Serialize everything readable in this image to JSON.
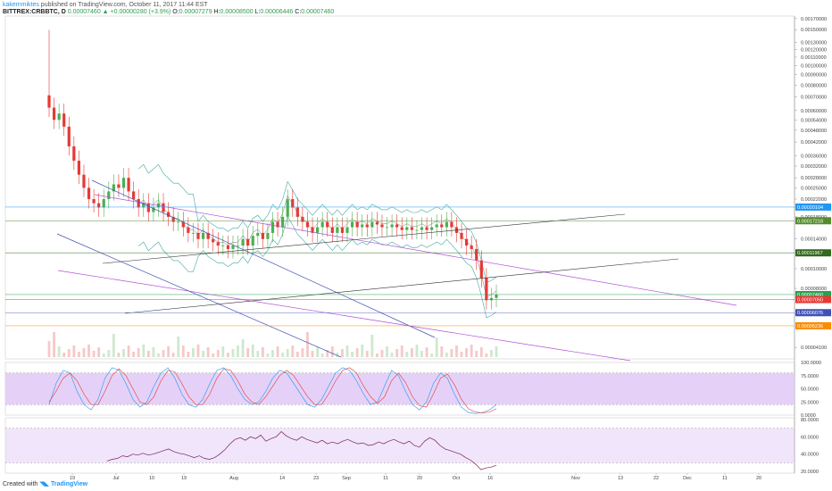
{
  "header": {
    "author": "kakemmiktes",
    "published": "published on TradingView.com, October 11, 2017 11:44 EST",
    "symbol": "BITTREX:CRBBTC, D",
    "ohlc": "0.00007460 ▲ +0.00000280 (+3.9%)",
    "o_label": "O:",
    "o": "0.00007279",
    "h_label": "H:",
    "h": "0.00008500",
    "l_label": "L:",
    "l": "0.00006446",
    "c_label": "C:",
    "c": "0.00007460"
  },
  "footer": {
    "created_with": "Created with",
    "brand": "TradingView"
  },
  "colors": {
    "up": "#4caf50",
    "down": "#e53935",
    "bb": "#3fa9a0",
    "ma": "#777777",
    "wedge_pink": "#b04fd6",
    "wedge_blue": "#3f51b5",
    "trend_black": "#333333",
    "rsi_band": "#dec6f6",
    "stoch_k": "#2196f3",
    "stoch_d": "#e53935",
    "rsi_line": "#7b1f54"
  },
  "chart_data": [
    {
      "type": "candlestick",
      "title": "BITTREX:CRBBTC, D",
      "x_ticks": [
        "19",
        "Jul",
        "10",
        "19",
        "Aug",
        "14",
        "23",
        "Sep",
        "11",
        "20",
        "Oct",
        "16",
        "Nov",
        "13",
        "22",
        "Dec",
        "11",
        "20"
      ],
      "y_ticks": [
        "0.00170000",
        "0.00150000",
        "0.00130000",
        "0.00120000",
        "0.00110000",
        "0.00100000",
        "0.00090000",
        "0.00080000",
        "0.00070000",
        "0.00060000",
        "0.00054000",
        "0.00048000",
        "0.00042000",
        "0.00036000",
        "0.00032000",
        "0.00028000",
        "0.00025000",
        "0.00022000",
        "0.00020000",
        "0.00018000",
        "0.00014000",
        "0.00010000",
        "0.00008000",
        "0.00006000",
        "0.00004100"
      ],
      "y_scale": "log",
      "ylim": [
        3.6e-05,
        0.00175
      ],
      "price_labels": [
        {
          "text": "0.00020104",
          "color": "#2196f3"
        },
        {
          "text": "0.00017218",
          "color": "#558b2f"
        },
        {
          "text": "0.00011967",
          "color": "#33691e"
        },
        {
          "text": "0.00007460",
          "color": "#2e9e4f"
        },
        {
          "text": "0.00007050",
          "color": "#e53935"
        },
        {
          "text": "0.00006076",
          "color": "#3f51b5"
        },
        {
          "text": "0.00005236",
          "color": "#fb8c00"
        }
      ],
      "close": [
        0.00062,
        0.00054,
        0.00058,
        0.0005,
        0.0004,
        0.00034,
        0.00029,
        0.00025,
        0.00022,
        0.00021,
        0.0002,
        0.00022,
        0.00024,
        0.00026,
        0.00025,
        0.00028,
        0.00024,
        0.00022,
        0.0002,
        0.00021,
        0.00019,
        0.0002,
        0.00021,
        0.00019,
        0.00018,
        0.00017,
        0.00017,
        0.00016,
        0.00015,
        0.00015,
        0.00014,
        0.00015,
        0.00014,
        0.000135,
        0.00013,
        0.00013,
        0.000125,
        0.00013,
        0.00013,
        0.00014,
        0.00013,
        0.000145,
        0.00015,
        0.00014,
        0.00015,
        0.00017,
        0.00016,
        0.00018,
        0.00022,
        0.0002,
        0.00018,
        0.00017,
        0.00016,
        0.00015,
        0.00016,
        0.00017,
        0.00016,
        0.00015,
        0.00016,
        0.00015,
        0.00016,
        0.00017,
        0.00016,
        0.000165,
        0.00016,
        0.00017,
        0.000165,
        0.00016,
        0.00016,
        0.000165,
        0.00016,
        0.000155,
        0.00016,
        0.000155,
        0.000155,
        0.00016,
        0.000155,
        0.00016,
        0.000165,
        0.00016,
        0.00017,
        0.00016,
        0.00015,
        0.00014,
        0.00013,
        0.000125,
        0.00011,
        9e-05,
        7e-05,
        7.18e-05,
        7.46e-05
      ],
      "last_close": 7.46e-05
    },
    {
      "type": "line",
      "title": "Stochastic RSI",
      "y_ticks": [
        "100.0000",
        "75.0000",
        "50.0000",
        "25.0000",
        "0.0000"
      ],
      "ylim": [
        0,
        100
      ],
      "band": [
        20,
        80
      ],
      "k": [
        20,
        60,
        85,
        80,
        45,
        20,
        10,
        30,
        70,
        90,
        85,
        60,
        30,
        15,
        25,
        55,
        80,
        90,
        70,
        40,
        20,
        15,
        30,
        60,
        85,
        90,
        75,
        50,
        30,
        20,
        25,
        45,
        70,
        85,
        80,
        60,
        40,
        20,
        15,
        30,
        55,
        80,
        90,
        85,
        65,
        40,
        20,
        25,
        55,
        85,
        75,
        45,
        20,
        10,
        25,
        60,
        80,
        70,
        40,
        15,
        5,
        3,
        5,
        10,
        20
      ],
      "d": [
        25,
        45,
        70,
        80,
        65,
        40,
        20,
        20,
        45,
        75,
        88,
        75,
        50,
        25,
        20,
        35,
        65,
        85,
        82,
        60,
        35,
        20,
        20,
        40,
        70,
        88,
        85,
        65,
        40,
        25,
        20,
        35,
        55,
        75,
        85,
        75,
        55,
        35,
        20,
        20,
        40,
        65,
        85,
        90,
        80,
        55,
        35,
        22,
        35,
        65,
        80,
        62,
        35,
        18,
        15,
        40,
        70,
        78,
        58,
        30,
        12,
        6,
        4,
        6,
        12
      ]
    },
    {
      "type": "line",
      "title": "RSI",
      "y_ticks": [
        "80.0000",
        "60.0000",
        "40.0000",
        "20.0000"
      ],
      "ylim": [
        18,
        82
      ],
      "band": [
        30,
        70
      ],
      "values": [
        32,
        34,
        35,
        38,
        37,
        40,
        39,
        41,
        39,
        40,
        42,
        44,
        46,
        43,
        41,
        40,
        38,
        36,
        38,
        35,
        34,
        36,
        40,
        45,
        52,
        57,
        59,
        56,
        60,
        58,
        62,
        55,
        58,
        60,
        66,
        61,
        58,
        56,
        60,
        57,
        55,
        53,
        56,
        52,
        54,
        52,
        55,
        57,
        54,
        52,
        53,
        50,
        51,
        54,
        52,
        55,
        57,
        54,
        52,
        55,
        50,
        48,
        55,
        59,
        56,
        50,
        46,
        44,
        42,
        40,
        36,
        33,
        28,
        22,
        24,
        25,
        27
      ]
    }
  ]
}
